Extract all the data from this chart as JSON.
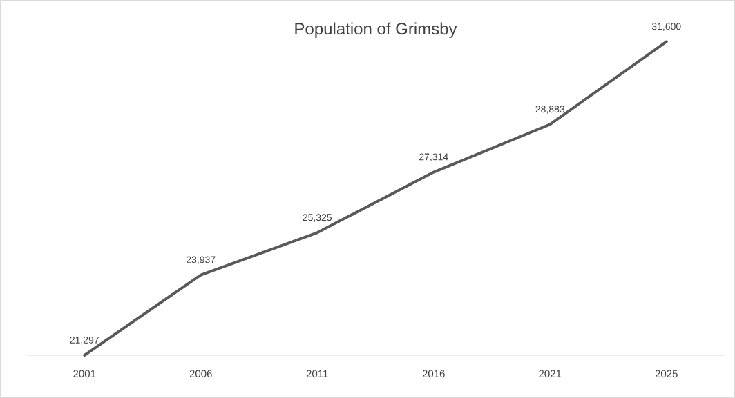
{
  "chart_data": {
    "type": "line",
    "title": "Population of Grimsby",
    "categories": [
      "2001",
      "2006",
      "2011",
      "2016",
      "2021",
      "2025"
    ],
    "values": [
      21297,
      23937,
      25325,
      27314,
      28883,
      31600
    ],
    "value_labels": [
      "21,297",
      "23,937",
      "25,325",
      "27,314",
      "28,883",
      "31,600"
    ],
    "color": "#595959"
  }
}
